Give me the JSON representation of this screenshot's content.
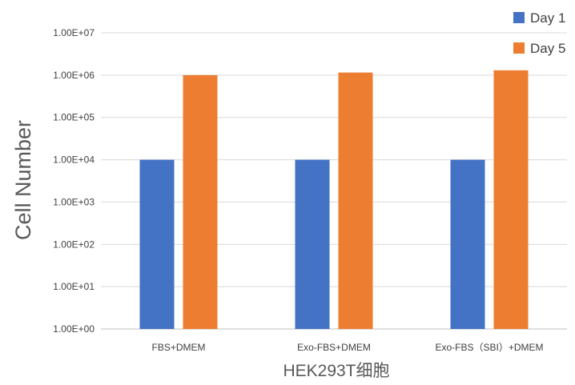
{
  "chart_data": {
    "type": "bar",
    "xlabel": "HEK293T细胞",
    "ylabel": "Cell Number",
    "yscale": "log",
    "ylim": [
      1,
      10000000
    ],
    "yticks": [
      1,
      10,
      100,
      1000,
      10000,
      100000,
      1000000,
      10000000
    ],
    "ytick_labels": [
      "1.00E+00",
      "1.00E+01",
      "1.00E+02",
      "1.00E+03",
      "1.00E+04",
      "1.00E+05",
      "1.00E+06",
      "1.00E+07"
    ],
    "grid": true,
    "legend": "top-right",
    "categories": [
      "FBS+DMEM",
      "Exo-FBS+DMEM",
      "Exo-FBS（SBI）+DMEM"
    ],
    "series": [
      {
        "name": "Day 1",
        "color": "#4472C4",
        "values": [
          10000,
          10000,
          10000
        ]
      },
      {
        "name": "Day 5",
        "color": "#ED7D31",
        "values": [
          1000000,
          1150000,
          1300000
        ]
      }
    ]
  }
}
